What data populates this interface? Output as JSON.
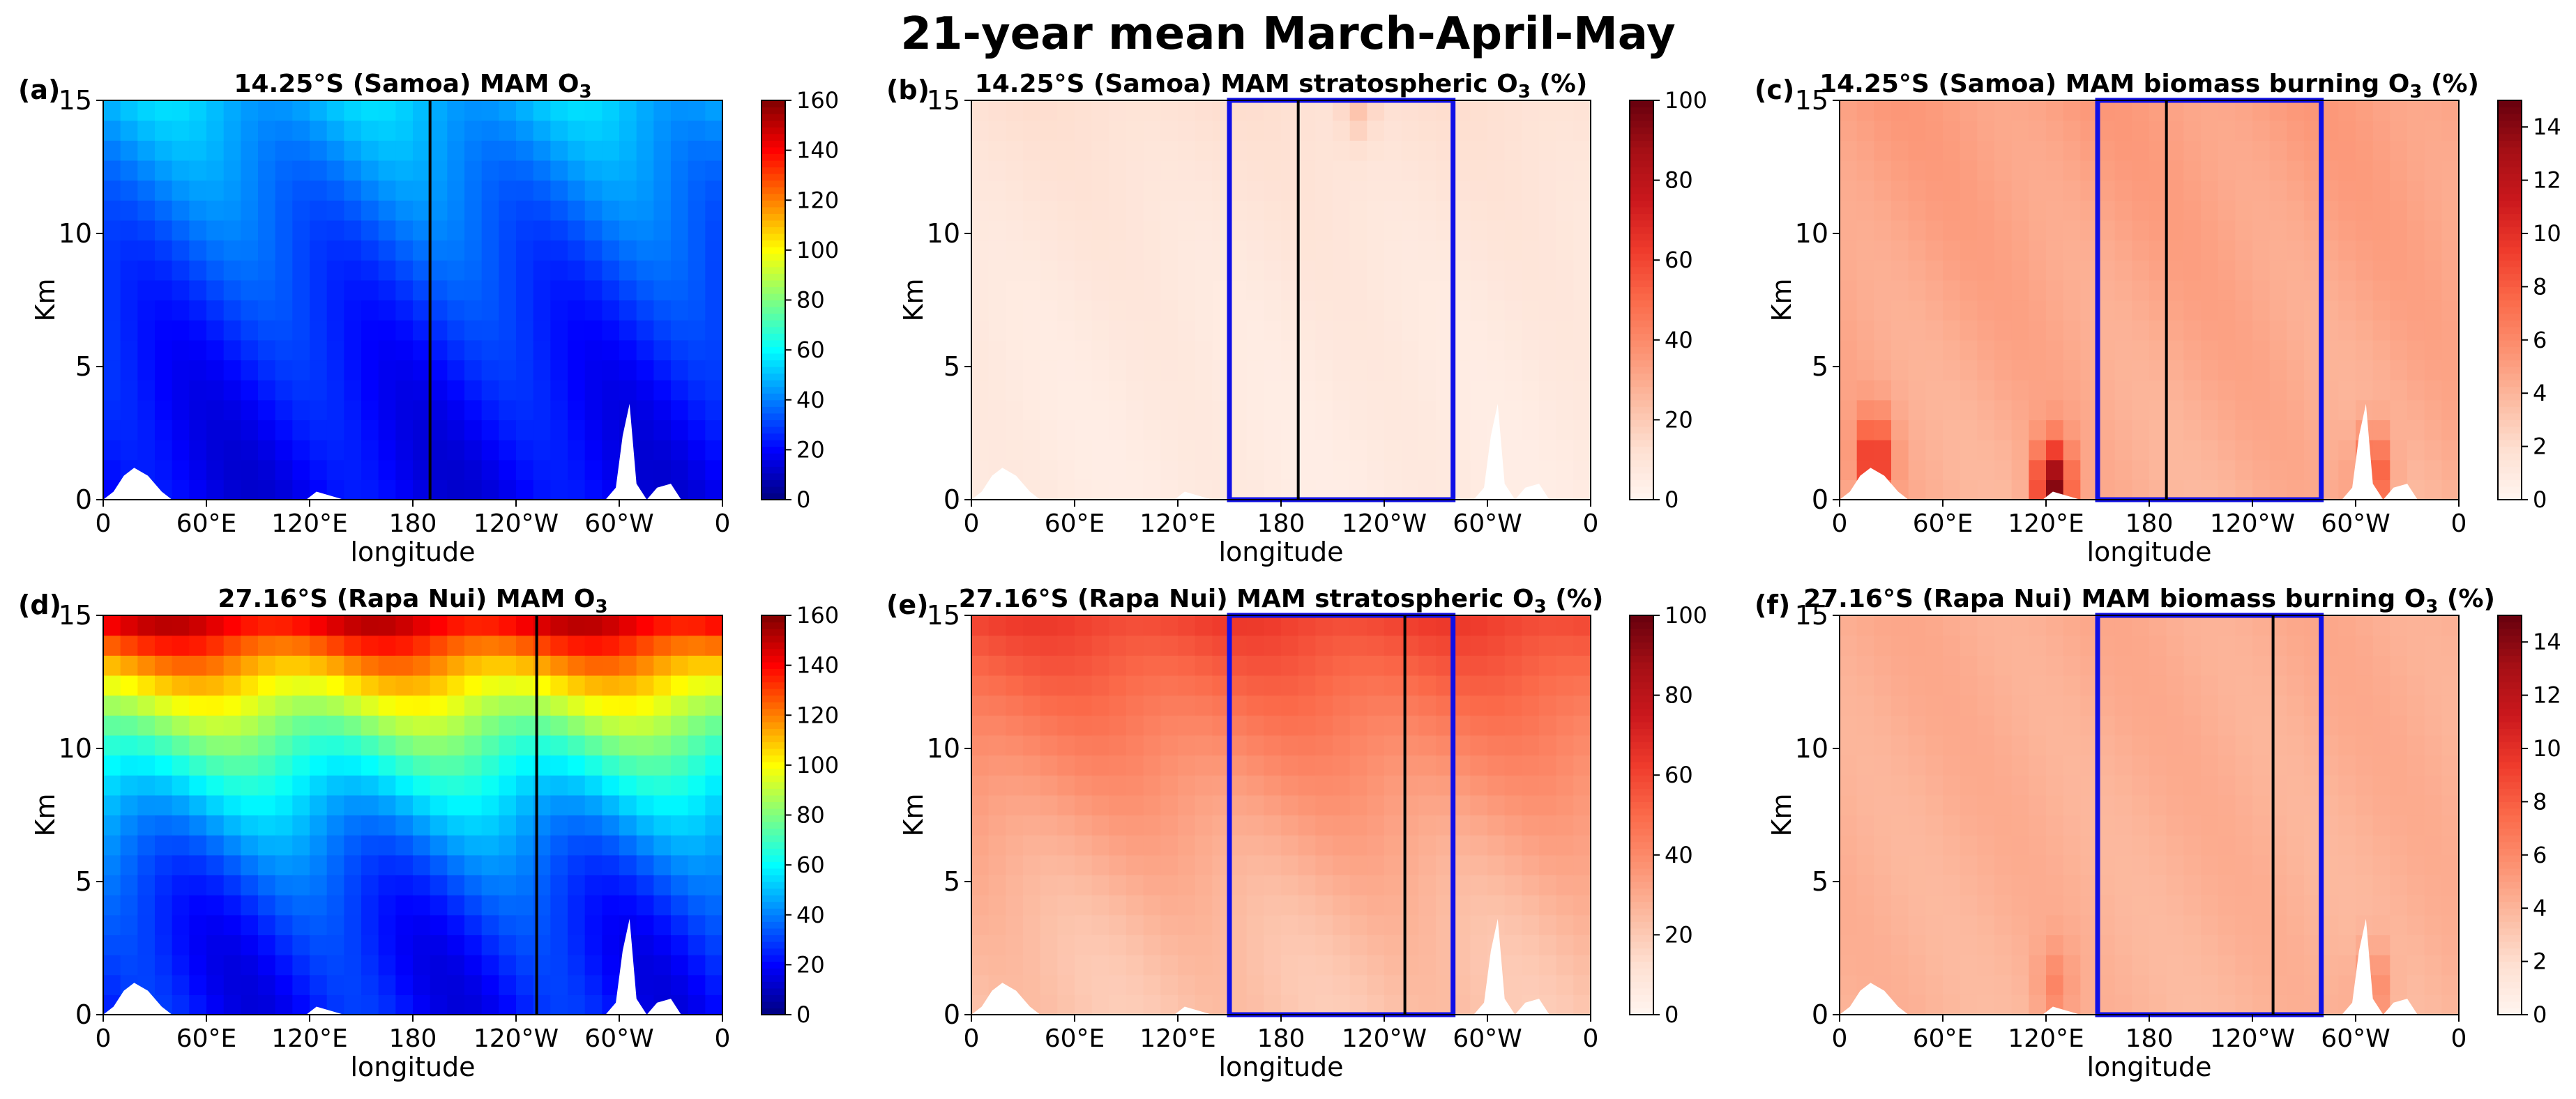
{
  "figure": {
    "title": "21-year mean March-April-May"
  },
  "colors": {
    "frame": "#000000",
    "box": "#1010e6",
    "marker_line": "#000000",
    "terrain": "#ffffff"
  },
  "colormaps": {
    "jet": [
      "#00007f",
      "#0000ff",
      "#007fff",
      "#00ffff",
      "#7fff7f",
      "#ffff00",
      "#ff7f00",
      "#ff0000",
      "#7f0000"
    ],
    "reds": [
      "#fff5f0",
      "#fee0d2",
      "#fcbba1",
      "#fc9272",
      "#fb6a4a",
      "#ef3b2c",
      "#cb181d",
      "#a50f15",
      "#67000d"
    ]
  },
  "chart_data": [
    {
      "type": "heatmap",
      "panel_label": "(a)",
      "title_pre": "14.25°S (Samoa) MAM O",
      "title_sub": "3",
      "title_post": "",
      "xlabel": "longitude",
      "ylabel": "Km",
      "x_ticks": [
        "0",
        "60°E",
        "120°E",
        "180",
        "120°W",
        "60°W",
        "0"
      ],
      "y_ticks": [
        "0",
        "5",
        "10",
        "15"
      ],
      "xlim": [
        0,
        360
      ],
      "ylim": [
        0,
        15
      ],
      "colormap": "jet",
      "color_range": [
        0,
        160
      ],
      "colorbar_ticks": [
        "0",
        "20",
        "40",
        "60",
        "80",
        "100",
        "120",
        "140",
        "160"
      ],
      "field": {
        "base": 18,
        "top": 50,
        "exponent": 1.6,
        "ripple": 6
      },
      "hotspots": [],
      "vertical_line_lon": 190,
      "highlight_box": null
    },
    {
      "type": "heatmap",
      "panel_label": "(b)",
      "title_pre": "14.25°S (Samoa) MAM stratospheric O",
      "title_sub": "3",
      "title_post": " (%)",
      "xlabel": "longitude",
      "ylabel": "Km",
      "x_ticks": [
        "0",
        "60°E",
        "120°E",
        "180",
        "120°W",
        "60°W",
        "0"
      ],
      "y_ticks": [
        "0",
        "5",
        "10",
        "15"
      ],
      "xlim": [
        0,
        360
      ],
      "ylim": [
        0,
        15
      ],
      "colormap": "reds",
      "color_range": [
        0,
        100
      ],
      "colorbar_ticks": [
        "0",
        "20",
        "40",
        "60",
        "80",
        "100"
      ],
      "field": {
        "base": 6,
        "top": 12,
        "exponent": 2.0,
        "ripple": 1.5
      },
      "hotspots": [
        {
          "lon": 225,
          "alt": 15,
          "value": 18
        }
      ],
      "vertical_line_lon": 190,
      "highlight_box": {
        "lon": [
          150,
          280
        ],
        "alt": [
          0,
          15
        ]
      }
    },
    {
      "type": "heatmap",
      "panel_label": "(c)",
      "title_pre": "14.25°S (Samoa) MAM biomass burning O",
      "title_sub": "3",
      "title_post": " (%)",
      "xlabel": "longitude",
      "ylabel": "Km",
      "x_ticks": [
        "0",
        "60°E",
        "120°E",
        "180",
        "120°W",
        "60°W",
        "0"
      ],
      "y_ticks": [
        "0",
        "5",
        "10",
        "15"
      ],
      "xlim": [
        0,
        360
      ],
      "ylim": [
        0,
        15
      ],
      "colormap": "reds",
      "color_range": [
        0,
        15
      ],
      "colorbar_ticks": [
        "0",
        "2",
        "4",
        "6",
        "8",
        "10",
        "12",
        "14"
      ],
      "field": {
        "base": 4.2,
        "top": 5.0,
        "exponent": 1.0,
        "ripple": 0.4
      },
      "hotspots": [
        {
          "lon": 20,
          "alt": 1.5,
          "value": 10
        },
        {
          "lon": 124,
          "alt": 0.5,
          "value": 14
        },
        {
          "lon": 310,
          "alt": 1.0,
          "value": 9
        }
      ],
      "vertical_line_lon": 190,
      "highlight_box": {
        "lon": [
          150,
          280
        ],
        "alt": [
          0,
          15
        ]
      }
    },
    {
      "type": "heatmap",
      "panel_label": "(d)",
      "title_pre": "27.16°S (Rapa Nui) MAM O",
      "title_sub": "3",
      "title_post": "",
      "xlabel": "longitude",
      "ylabel": "Km",
      "x_ticks": [
        "0",
        "60°E",
        "120°E",
        "180",
        "120°W",
        "60°W",
        "0"
      ],
      "y_ticks": [
        "0",
        "5",
        "10",
        "15"
      ],
      "xlim": [
        0,
        360
      ],
      "ylim": [
        0,
        15
      ],
      "colormap": "jet",
      "color_range": [
        0,
        160
      ],
      "colorbar_ticks": [
        "0",
        "20",
        "40",
        "60",
        "80",
        "100",
        "120",
        "140",
        "160"
      ],
      "field": {
        "base": 22,
        "top": 150,
        "exponent": 2.3,
        "ripple": 8
      },
      "hotspots": [],
      "vertical_line_lon": 252,
      "highlight_box": null
    },
    {
      "type": "heatmap",
      "panel_label": "(e)",
      "title_pre": "27.16°S  (Rapa Nui) MAM stratospheric O",
      "title_sub": "3",
      "title_post": " (%)",
      "xlabel": "longitude",
      "ylabel": "Km",
      "x_ticks": [
        "0",
        "60°E",
        "120°E",
        "180",
        "120°W",
        "60°W",
        "0"
      ],
      "y_ticks": [
        "0",
        "5",
        "10",
        "15"
      ],
      "xlim": [
        0,
        360
      ],
      "ylim": [
        0,
        15
      ],
      "colormap": "reds",
      "color_range": [
        0,
        100
      ],
      "colorbar_ticks": [
        "0",
        "20",
        "40",
        "60",
        "80",
        "100"
      ],
      "field": {
        "base": 22,
        "top": 62,
        "exponent": 1.8,
        "ripple": 3
      },
      "hotspots": [],
      "vertical_line_lon": 252,
      "highlight_box": {
        "lon": [
          150,
          280
        ],
        "alt": [
          0,
          15
        ]
      }
    },
    {
      "type": "heatmap",
      "panel_label": "(f)",
      "title_pre": "27.16°S (Rapa Nui) MAM biomass burning O",
      "title_sub": "3",
      "title_post": " (%)",
      "xlabel": "longitude",
      "ylabel": "Km",
      "x_ticks": [
        "0",
        "60°E",
        "120°E",
        "180",
        "120°W",
        "60°W",
        "0"
      ],
      "y_ticks": [
        "0",
        "5",
        "10",
        "15"
      ],
      "xlim": [
        0,
        360
      ],
      "ylim": [
        0,
        15
      ],
      "colormap": "reds",
      "color_range": [
        0,
        15
      ],
      "colorbar_ticks": [
        "0",
        "2",
        "4",
        "6",
        "8",
        "10",
        "12",
        "14"
      ],
      "field": {
        "base": 4.0,
        "top": 4.4,
        "exponent": 1.0,
        "ripple": 0.3
      },
      "hotspots": [
        {
          "lon": 125,
          "alt": 1.0,
          "value": 6
        },
        {
          "lon": 310,
          "alt": 1.0,
          "value": 6.5
        }
      ],
      "vertical_line_lon": 252,
      "highlight_box": {
        "lon": [
          150,
          280
        ],
        "alt": [
          0,
          15
        ]
      }
    }
  ]
}
